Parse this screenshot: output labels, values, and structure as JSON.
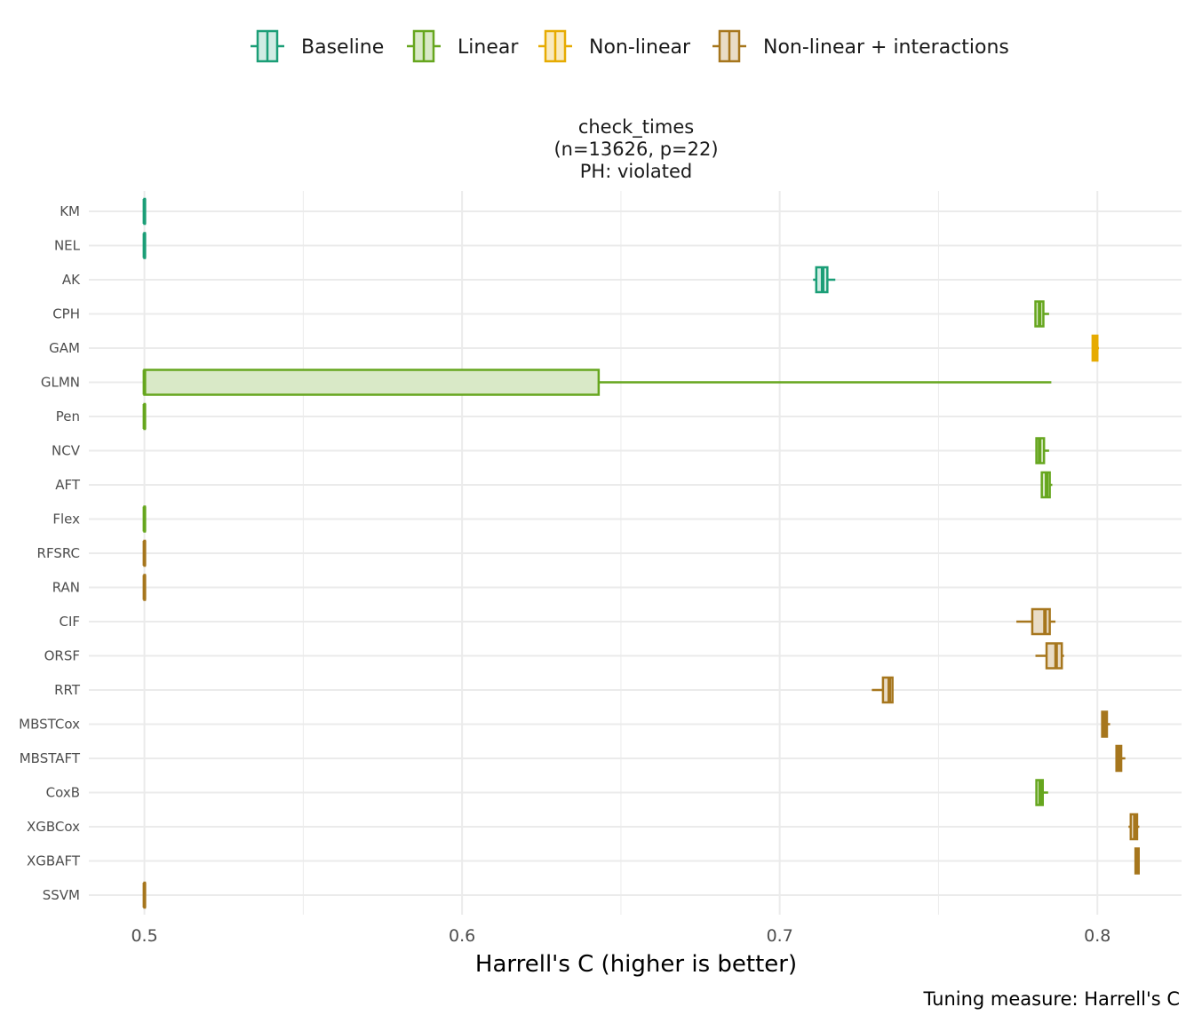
{
  "chart_data": {
    "type": "boxplot",
    "orientation": "horizontal",
    "title_lines": [
      "check_times",
      "(n=13626, p=22)",
      "PH: violated"
    ],
    "xlabel": "Harrell's C (higher is better)",
    "caption": "Tuning measure: Harrell's C",
    "xlim": [
      0.4825,
      0.8265
    ],
    "x_ticks": [
      0.5,
      0.6,
      0.7,
      0.8
    ],
    "x_tick_labels": [
      "0.5",
      "0.6",
      "0.7",
      "0.8"
    ],
    "x_minor_gridlines": [
      0.55,
      0.65,
      0.75
    ],
    "grid": true,
    "legend_position": "top",
    "legend": [
      {
        "name": "Baseline",
        "color": "#1b9e77",
        "fill": "#d1ece4"
      },
      {
        "name": "Linear",
        "color": "#66a61e",
        "fill": "#d9e9c7"
      },
      {
        "name": "Non-linear",
        "color": "#e6ab02",
        "fill": "#f9eac0"
      },
      {
        "name": "Non-linear + interactions",
        "color": "#a6761d",
        "fill": "#e9dcc6"
      }
    ],
    "categories": [
      "KM",
      "NEL",
      "AK",
      "CPH",
      "GAM",
      "GLMN",
      "Pen",
      "NCV",
      "AFT",
      "Flex",
      "RFSRC",
      "RAN",
      "CIF",
      "ORSF",
      "RRT",
      "MBSTCox",
      "MBSTAFT",
      "CoxB",
      "XGBCox",
      "XGBAFT",
      "SSVM"
    ],
    "series": [
      {
        "label": "KM",
        "group": "Baseline",
        "min": 0.5,
        "q1": 0.5,
        "median": 0.5,
        "q3": 0.5,
        "max": 0.5
      },
      {
        "label": "NEL",
        "group": "Baseline",
        "min": 0.5,
        "q1": 0.5,
        "median": 0.5,
        "q3": 0.5,
        "max": 0.5
      },
      {
        "label": "AK",
        "group": "Baseline",
        "min": 0.7105,
        "q1": 0.7115,
        "median": 0.7135,
        "q3": 0.715,
        "max": 0.7175
      },
      {
        "label": "CPH",
        "group": "Linear",
        "min": 0.7805,
        "q1": 0.7805,
        "median": 0.7818,
        "q3": 0.783,
        "max": 0.7848
      },
      {
        "label": "GAM",
        "group": "Non-linear",
        "min": 0.7985,
        "q1": 0.7985,
        "median": 0.7992,
        "q3": 0.8,
        "max": 0.8005
      },
      {
        "label": "GLMN",
        "group": "Linear",
        "min": 0.5,
        "q1": 0.5,
        "median": 0.5,
        "q3": 0.643,
        "max": 0.7855
      },
      {
        "label": "Pen",
        "group": "Linear",
        "min": 0.5,
        "q1": 0.5,
        "median": 0.5,
        "q3": 0.5,
        "max": 0.5
      },
      {
        "label": "NCV",
        "group": "Linear",
        "min": 0.7805,
        "q1": 0.7808,
        "median": 0.7818,
        "q3": 0.7832,
        "max": 0.7848
      },
      {
        "label": "AFT",
        "group": "Linear",
        "min": 0.7825,
        "q1": 0.7825,
        "median": 0.784,
        "q3": 0.785,
        "max": 0.7858
      },
      {
        "label": "Flex",
        "group": "Linear",
        "min": 0.5,
        "q1": 0.5,
        "median": 0.5,
        "q3": 0.5,
        "max": 0.5
      },
      {
        "label": "RFSRC",
        "group": "Non-linear + interactions",
        "min": 0.5,
        "q1": 0.5,
        "median": 0.5,
        "q3": 0.5,
        "max": 0.5
      },
      {
        "label": "RAN",
        "group": "Non-linear + interactions",
        "min": 0.5,
        "q1": 0.5,
        "median": 0.5,
        "q3": 0.5,
        "max": 0.5
      },
      {
        "label": "CIF",
        "group": "Non-linear + interactions",
        "min": 0.7745,
        "q1": 0.7795,
        "median": 0.7835,
        "q3": 0.785,
        "max": 0.7868
      },
      {
        "label": "ORSF",
        "group": "Non-linear + interactions",
        "min": 0.7805,
        "q1": 0.784,
        "median": 0.787,
        "q3": 0.7888,
        "max": 0.7895
      },
      {
        "label": "RRT",
        "group": "Non-linear + interactions",
        "min": 0.729,
        "q1": 0.7325,
        "median": 0.7345,
        "q3": 0.7355,
        "max": 0.7355
      },
      {
        "label": "MBSTCox",
        "group": "Non-linear + interactions",
        "min": 0.8015,
        "q1": 0.8015,
        "median": 0.8022,
        "q3": 0.803,
        "max": 0.804
      },
      {
        "label": "MBSTAFT",
        "group": "Non-linear + interactions",
        "min": 0.806,
        "q1": 0.806,
        "median": 0.8068,
        "q3": 0.8075,
        "max": 0.8088
      },
      {
        "label": "CoxB",
        "group": "Linear",
        "min": 0.7805,
        "q1": 0.7808,
        "median": 0.782,
        "q3": 0.7828,
        "max": 0.7845
      },
      {
        "label": "XGBCox",
        "group": "Non-linear + interactions",
        "min": 0.8098,
        "q1": 0.8105,
        "median": 0.8118,
        "q3": 0.8125,
        "max": 0.8132
      },
      {
        "label": "XGBAFT",
        "group": "Non-linear + interactions",
        "min": 0.812,
        "q1": 0.812,
        "median": 0.8125,
        "q3": 0.813,
        "max": 0.813
      },
      {
        "label": "SSVM",
        "group": "Non-linear + interactions",
        "min": 0.5,
        "q1": 0.5,
        "median": 0.5,
        "q3": 0.5,
        "max": 0.5
      }
    ]
  }
}
